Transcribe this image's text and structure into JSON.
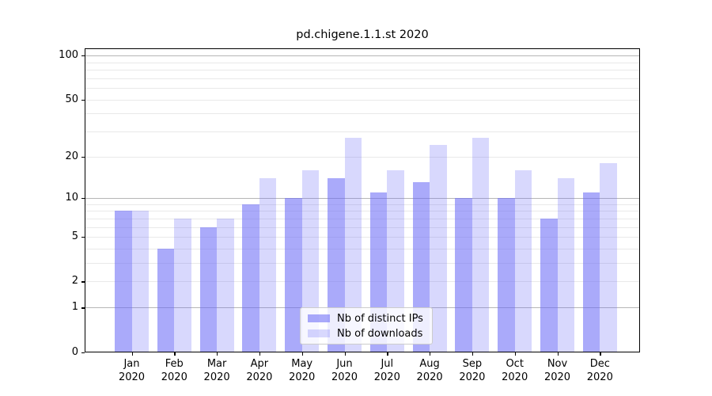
{
  "chart_data": {
    "type": "bar",
    "title": "pd.chigene.1.1.st 2020",
    "categories": [
      "Jan",
      "Feb",
      "Mar",
      "Apr",
      "May",
      "Jun",
      "Jul",
      "Aug",
      "Sep",
      "Oct",
      "Nov",
      "Dec"
    ],
    "category_year": "2020",
    "series": [
      {
        "name": "Nb of distinct IPs",
        "values": [
          8,
          4,
          6,
          9,
          10,
          14,
          11,
          13,
          10,
          10,
          7,
          11
        ],
        "color": "rgba(105, 105, 246, 0.57)"
      },
      {
        "name": "Nb of downloads",
        "values": [
          8,
          7,
          7,
          14,
          16,
          27,
          16,
          24,
          27,
          16,
          14,
          18
        ],
        "color": "rgba(105, 105, 246, 0.26)"
      }
    ],
    "yscale": "log1p",
    "ylim": [
      0,
      112
    ],
    "yticks": [
      0,
      1,
      2,
      5,
      10,
      20,
      50,
      100
    ],
    "major_gridlines": [
      1,
      10,
      100
    ],
    "minor_gridlines": [
      2,
      3,
      4,
      5,
      6,
      7,
      8,
      9,
      20,
      30,
      40,
      50,
      60,
      70,
      80,
      90
    ],
    "grid": "horizontal",
    "legend_position": "lower-center",
    "xlabel": "",
    "ylabel": ""
  },
  "colors": {
    "major_grid": "#b6b6b6",
    "minor_grid": "#e9e9e9",
    "axis": "#000000",
    "legend_border": "#cccccc"
  }
}
